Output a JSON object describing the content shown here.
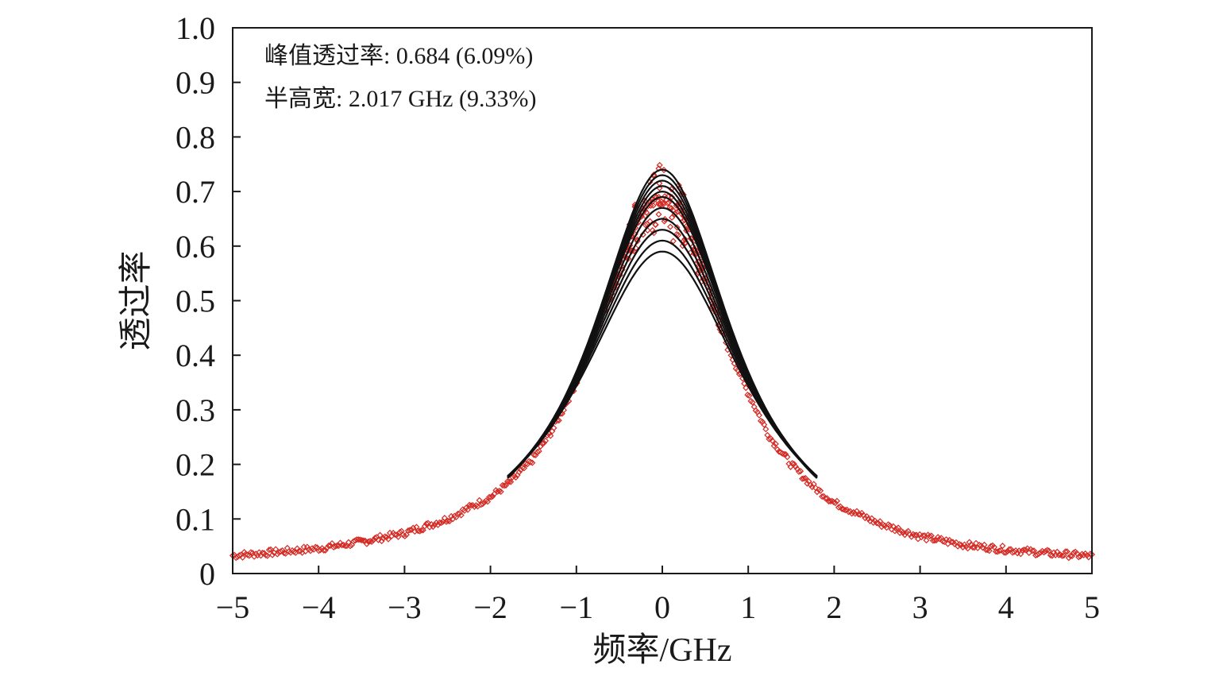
{
  "chart_data": {
    "type": "scatter",
    "xlabel": "频率/GHz",
    "ylabel": "透过率",
    "xlim": [
      -5,
      5
    ],
    "ylim": [
      0,
      1.0
    ],
    "x_ticks": [
      -5,
      -4,
      -3,
      -2,
      -1,
      0,
      1,
      2,
      3,
      4,
      5
    ],
    "x_tick_labels": [
      "−5",
      "−4",
      "−3",
      "−2",
      "−1",
      "0",
      "1",
      "2",
      "3",
      "4",
      "5"
    ],
    "y_ticks": [
      0,
      0.1,
      0.2,
      0.3,
      0.4,
      0.5,
      0.6,
      0.7,
      0.8,
      0.9,
      1.0
    ],
    "y_tick_labels": [
      "0",
      "0.1",
      "0.2",
      "0.3",
      "0.4",
      "0.5",
      "0.6",
      "0.7",
      "0.8",
      "0.9",
      "1.0"
    ],
    "annotations": [
      "峰值透过率: 0.684 (6.09%)",
      "半高宽: 2.017 GHz (9.33%)"
    ],
    "grid": false,
    "legend": "none",
    "colors": {
      "measured": "#d42a24",
      "fit": "#111111",
      "axis": "#1a1a1a"
    },
    "series": [
      {
        "marker": "diamond-open",
        "color": "#d42a24",
        "x": [
          -5.0,
          -4.5,
          -4.0,
          -3.5,
          -3.0,
          -2.5,
          -2.0,
          -1.75,
          -1.5,
          -1.25,
          -1.0,
          -0.75,
          -0.5,
          -0.25,
          0.0,
          0.25,
          0.5,
          0.75,
          1.0,
          1.25,
          1.5,
          1.75,
          2.0,
          2.5,
          3.0,
          3.5,
          4.0,
          4.5,
          5.0
        ],
        "y": [
          0.033,
          0.039,
          0.046,
          0.058,
          0.074,
          0.1,
          0.14,
          0.17,
          0.21,
          0.27,
          0.35,
          0.45,
          0.56,
          0.66,
          0.69,
          0.65,
          0.54,
          0.42,
          0.33,
          0.25,
          0.2,
          0.16,
          0.13,
          0.093,
          0.068,
          0.053,
          0.044,
          0.037,
          0.032
        ]
      },
      {
        "line": true,
        "color": "#111111",
        "x_range": [
          -1.8,
          1.8
        ],
        "peak_values": [
          0.59,
          0.61,
          0.63,
          0.65,
          0.67,
          0.69,
          0.7,
          0.71,
          0.72,
          0.73,
          0.74
        ]
      }
    ]
  }
}
